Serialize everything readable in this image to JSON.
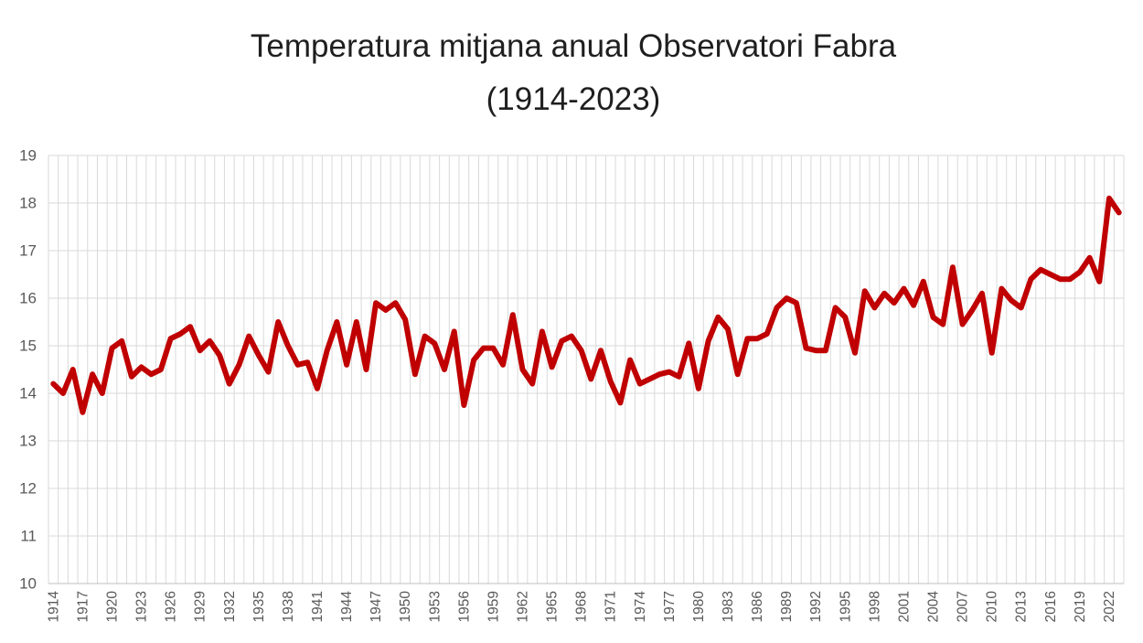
{
  "title": {
    "line1": "Temperatura mitjana anual Observatori Fabra",
    "line2": "(1914-2023)"
  },
  "chart_data": {
    "type": "line",
    "title": "Temperatura mitjana anual Observatori Fabra (1914-2023)",
    "xlabel": "",
    "ylabel": "",
    "ylim": [
      10,
      19
    ],
    "y_ticks": [
      10,
      11,
      12,
      13,
      14,
      15,
      16,
      17,
      18,
      19
    ],
    "x_tick_labels": [
      "1914",
      "1917",
      "1920",
      "1923",
      "1926",
      "1929",
      "1932",
      "1935",
      "1938",
      "1941",
      "1944",
      "1947",
      "1950",
      "1953",
      "1956",
      "1959",
      "1962",
      "1965",
      "1968",
      "1971",
      "1974",
      "1977",
      "1980",
      "1983",
      "1986",
      "1989",
      "1992",
      "1995",
      "1998",
      "2001",
      "2004",
      "2007",
      "2010",
      "2013",
      "2016",
      "2019",
      "2022"
    ],
    "grid": true,
    "legend": "none",
    "line_color": "#c00000",
    "grid_color": "#d9d9d9",
    "axis_line_color": "#bfbfbf",
    "axis_label_color": "#595959",
    "years": [
      1914,
      1915,
      1916,
      1917,
      1918,
      1919,
      1920,
      1921,
      1922,
      1923,
      1924,
      1925,
      1926,
      1927,
      1928,
      1929,
      1930,
      1931,
      1932,
      1933,
      1934,
      1935,
      1936,
      1937,
      1938,
      1939,
      1940,
      1941,
      1942,
      1943,
      1944,
      1945,
      1946,
      1947,
      1948,
      1949,
      1950,
      1951,
      1952,
      1953,
      1954,
      1955,
      1956,
      1957,
      1958,
      1959,
      1960,
      1961,
      1962,
      1963,
      1964,
      1965,
      1966,
      1967,
      1968,
      1969,
      1970,
      1971,
      1972,
      1973,
      1974,
      1975,
      1976,
      1977,
      1978,
      1979,
      1980,
      1981,
      1982,
      1983,
      1984,
      1985,
      1986,
      1987,
      1988,
      1989,
      1990,
      1991,
      1992,
      1993,
      1994,
      1995,
      1996,
      1997,
      1998,
      1999,
      2000,
      2001,
      2002,
      2003,
      2004,
      2005,
      2006,
      2007,
      2008,
      2009,
      2010,
      2011,
      2012,
      2013,
      2014,
      2015,
      2016,
      2017,
      2018,
      2019,
      2020,
      2021,
      2022,
      2023
    ],
    "values": [
      14.2,
      14.0,
      14.5,
      13.6,
      14.4,
      14.0,
      14.95,
      15.1,
      14.35,
      14.55,
      14.4,
      14.5,
      15.15,
      15.25,
      15.4,
      14.9,
      15.1,
      14.8,
      14.2,
      14.6,
      15.2,
      14.8,
      14.45,
      15.5,
      15.0,
      14.6,
      14.65,
      14.1,
      14.9,
      15.5,
      14.6,
      15.5,
      14.5,
      15.9,
      15.75,
      15.9,
      15.55,
      14.4,
      15.2,
      15.05,
      14.5,
      15.3,
      13.75,
      14.7,
      14.95,
      14.95,
      14.6,
      15.65,
      14.5,
      14.2,
      15.3,
      14.55,
      15.1,
      15.2,
      14.9,
      14.3,
      14.9,
      14.25,
      13.8,
      14.7,
      14.2,
      14.3,
      14.4,
      14.45,
      14.35,
      15.05,
      14.1,
      15.1,
      15.6,
      15.35,
      14.4,
      15.15,
      15.15,
      15.25,
      15.8,
      16.0,
      15.9,
      14.95,
      14.9,
      14.9,
      15.8,
      15.6,
      14.85,
      16.15,
      15.8,
      16.1,
      15.9,
      16.2,
      15.85,
      16.35,
      15.6,
      15.45,
      16.65,
      15.45,
      15.75,
      16.1,
      14.85,
      16.2,
      15.95,
      15.8,
      16.4,
      16.6,
      16.5,
      16.4,
      16.4,
      16.55,
      16.85,
      16.35,
      18.1,
      17.8
    ]
  }
}
